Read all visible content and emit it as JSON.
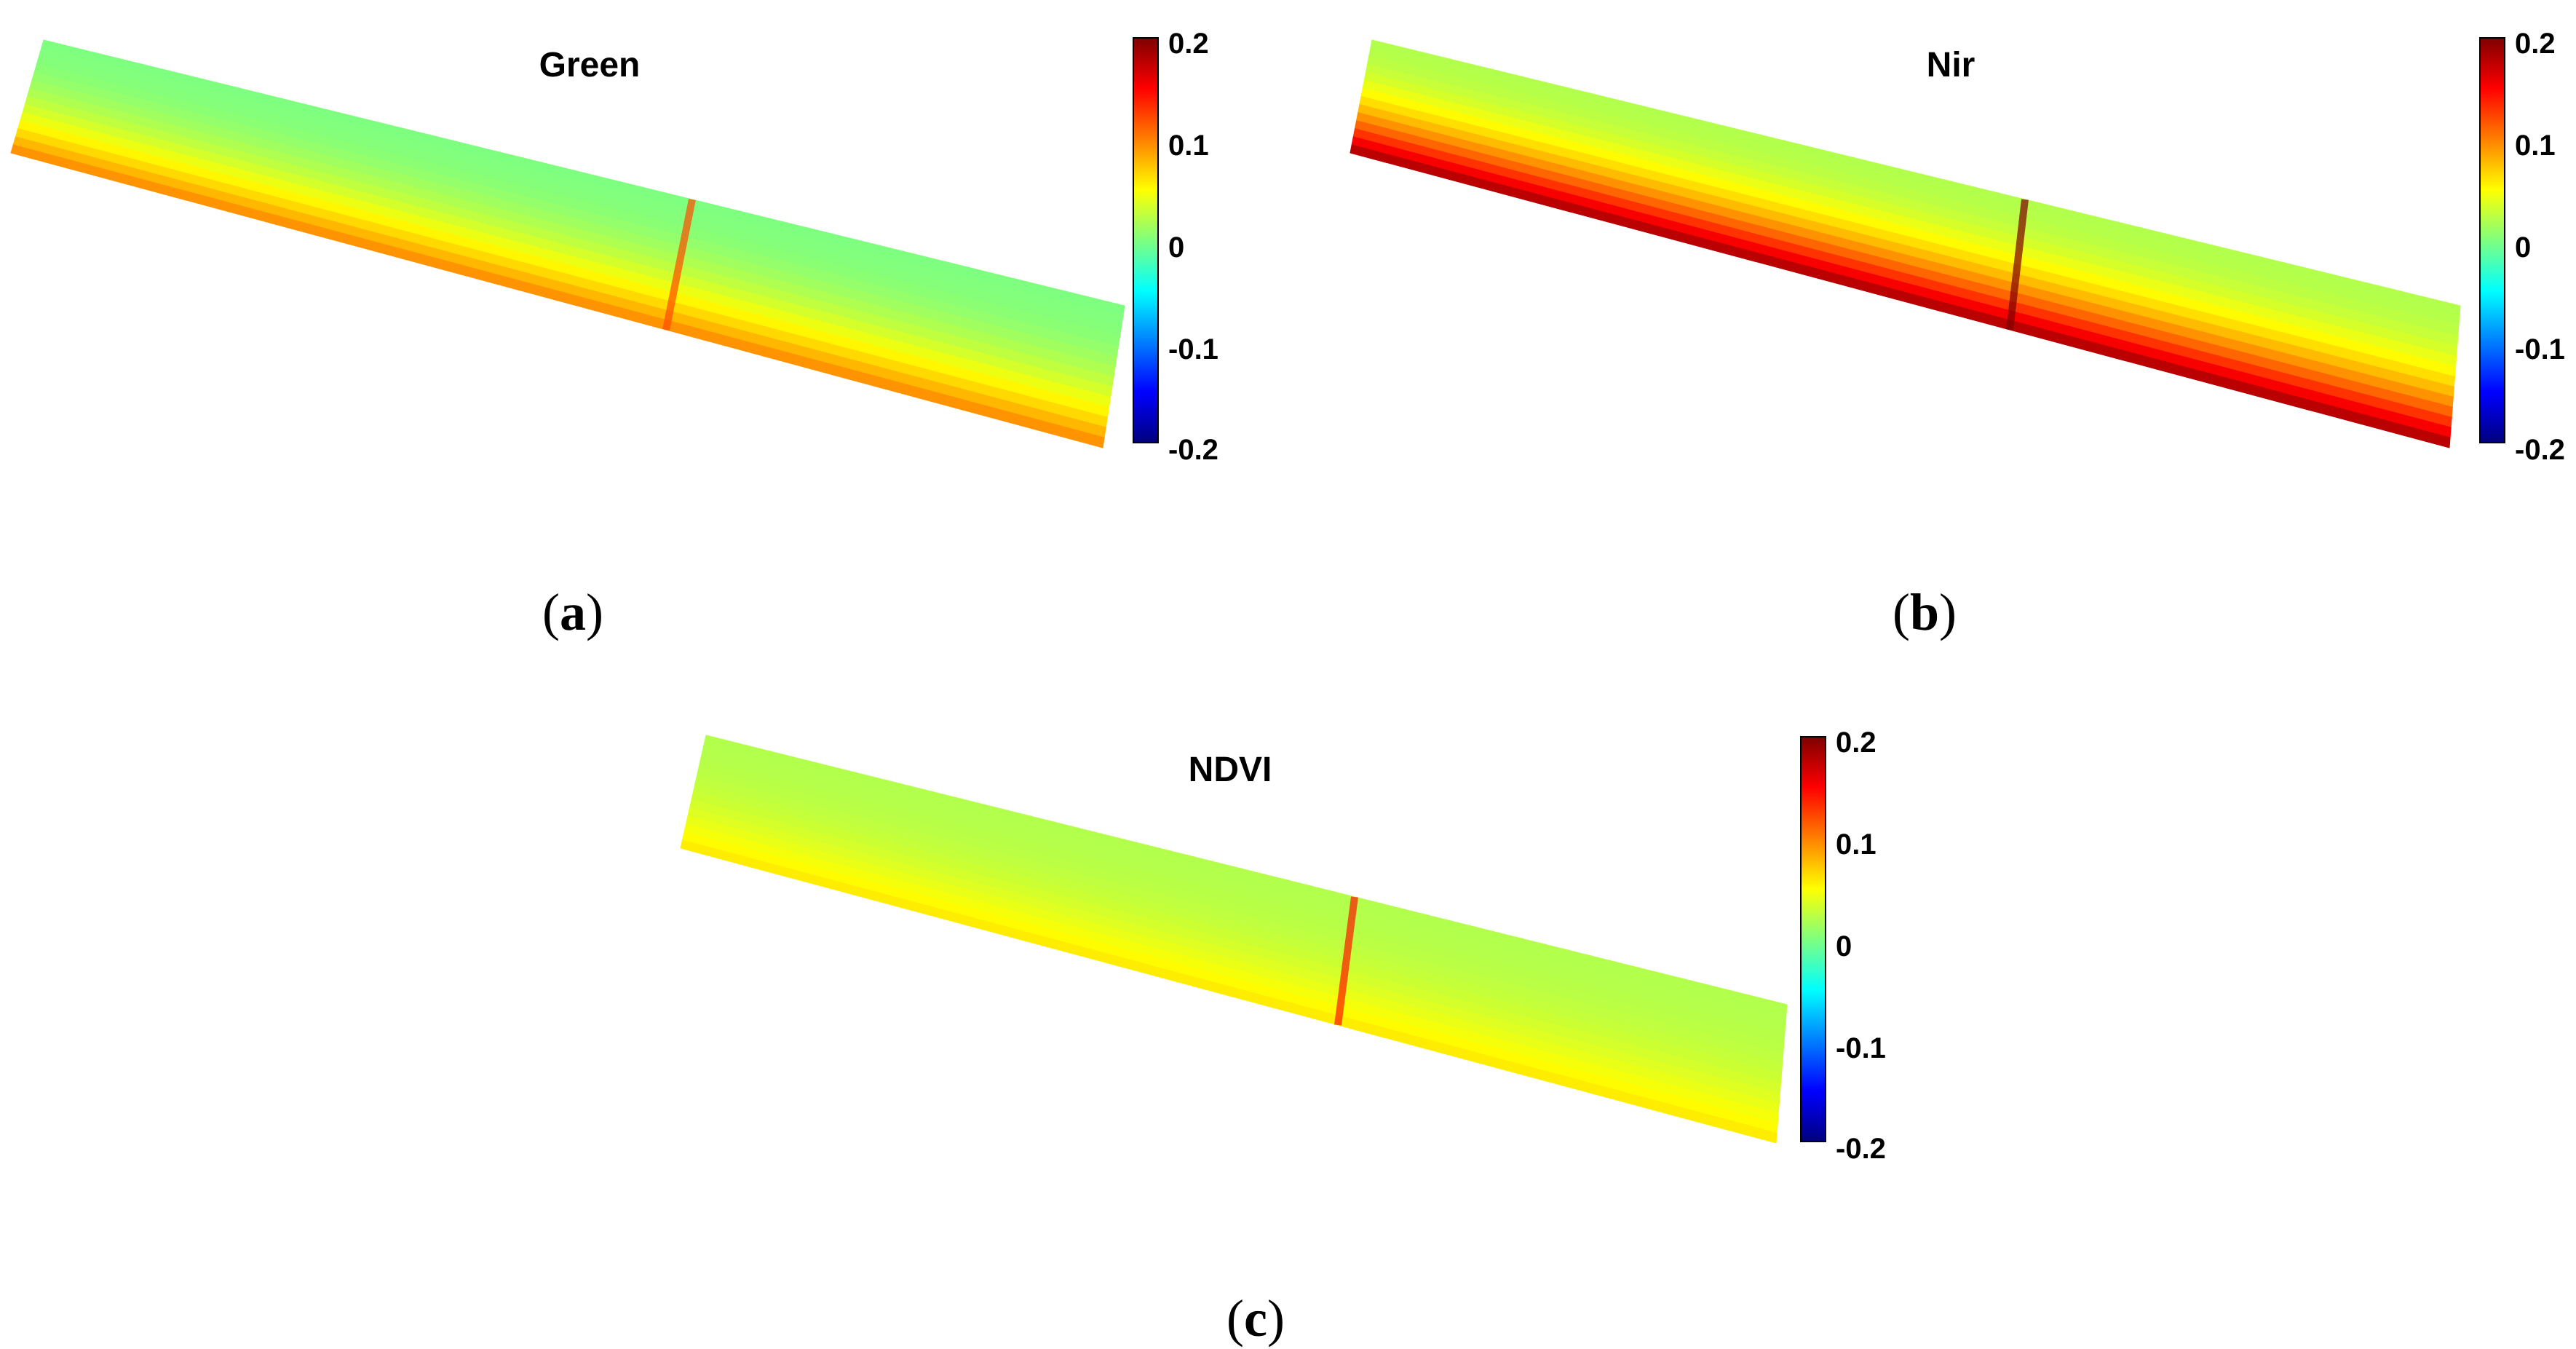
{
  "colormap": {
    "name": "jet",
    "stops": [
      "#00007f",
      "#0000ff",
      "#007fff",
      "#00ffff",
      "#7fff7f",
      "#ffff00",
      "#ff7f00",
      "#ff0000",
      "#7f0000"
    ]
  },
  "chart_data": [
    {
      "type": "heatmap",
      "panel_label": "a",
      "title": "Green",
      "colorbar": {
        "range": [
          -0.2,
          0.2
        ],
        "ticks": [
          "0.2",
          "0.1",
          "0",
          "-0.1",
          "-0.2"
        ]
      },
      "description_values": {
        "upper_strip_mean": 0.0,
        "lower_edge_mean": 0.1,
        "seam_value": 0.12
      }
    },
    {
      "type": "heatmap",
      "panel_label": "b",
      "title": "Nir",
      "colorbar": {
        "range": [
          -0.2,
          0.2
        ],
        "ticks": [
          "0.2",
          "0.1",
          "0",
          "-0.1",
          "-0.2"
        ]
      },
      "description_values": {
        "upper_strip_mean": 0.02,
        "lower_edge_mean": 0.19,
        "seam_value": 0.2
      }
    },
    {
      "type": "heatmap",
      "panel_label": "c",
      "title": "NDVI",
      "colorbar": {
        "range": [
          -0.2,
          0.2
        ],
        "ticks": [
          "0.2",
          "0.1",
          "0",
          "-0.1",
          "-0.2"
        ]
      },
      "description_values": {
        "upper_strip_mean": 0.02,
        "lower_edge_mean": 0.06,
        "seam_value": 0.14
      }
    }
  ]
}
